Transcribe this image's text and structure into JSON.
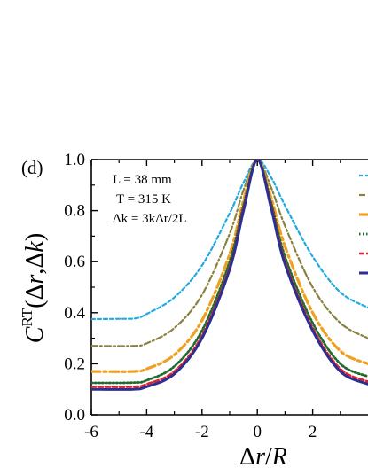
{
  "chart_data": {
    "type": "line",
    "panel_label": "(d)",
    "xlabel": "Δr/R",
    "ylabel": "C^RT(Δr,Δk)",
    "xlim": [
      -6,
      4
    ],
    "ylim": [
      0.0,
      1.0
    ],
    "xticks": [
      "-6",
      "-4",
      "-2",
      "0",
      "2"
    ],
    "yticks": [
      "0.0",
      "0.2",
      "0.4",
      "0.6",
      "0.8",
      "1.0"
    ],
    "annotations": [
      "L = 38 mm",
      "T = 315 K",
      "Δk = 3kΔr/2L"
    ],
    "series": [
      {
        "color": "#22a9e0",
        "dash": "4,3",
        "width": 2.2,
        "base": 0.375,
        "sigma": 1.45,
        "points": [
          [
            -6,
            0.375
          ],
          [
            -5,
            0.376
          ],
          [
            -4.4,
            0.378
          ],
          [
            -4,
            0.395
          ],
          [
            -3,
            0.46
          ],
          [
            -2,
            0.585
          ],
          [
            -1,
            0.79
          ],
          [
            -0.5,
            0.91
          ],
          [
            0,
            1.0
          ],
          [
            0.5,
            0.93
          ],
          [
            1,
            0.82
          ],
          [
            2,
            0.62
          ],
          [
            3,
            0.48
          ],
          [
            4,
            0.42
          ]
        ]
      },
      {
        "color": "#8a8140",
        "dash": "7,3,2,3",
        "width": 2.2,
        "base": 0.27,
        "sigma": 1.2,
        "points": [
          [
            -6,
            0.27
          ],
          [
            -4.5,
            0.27
          ],
          [
            -4,
            0.28
          ],
          [
            -3,
            0.34
          ],
          [
            -2,
            0.47
          ],
          [
            -1,
            0.71
          ],
          [
            -0.5,
            0.88
          ],
          [
            0,
            1.0
          ],
          [
            0.5,
            0.89
          ],
          [
            1,
            0.74
          ],
          [
            2,
            0.5
          ],
          [
            3,
            0.36
          ],
          [
            4,
            0.3
          ]
        ]
      },
      {
        "color": "#f0a020",
        "dash": "10,4,3,4",
        "width": 3.2,
        "base": 0.17,
        "sigma": 1.0,
        "points": [
          [
            -6,
            0.17
          ],
          [
            -4.5,
            0.17
          ],
          [
            -4,
            0.18
          ],
          [
            -3,
            0.235
          ],
          [
            -2,
            0.37
          ],
          [
            -1,
            0.63
          ],
          [
            -0.5,
            0.84
          ],
          [
            0,
            1.0
          ],
          [
            0.5,
            0.85
          ],
          [
            1,
            0.66
          ],
          [
            2,
            0.4
          ],
          [
            3,
            0.25
          ],
          [
            4,
            0.2
          ]
        ]
      },
      {
        "color": "#1f6b30",
        "dash": "1.5,2.5",
        "width": 2.8,
        "base": 0.125,
        "sigma": 0.93,
        "points": [
          [
            -6,
            0.125
          ],
          [
            -4.5,
            0.126
          ],
          [
            -4,
            0.135
          ],
          [
            -3,
            0.19
          ],
          [
            -2,
            0.33
          ],
          [
            -1,
            0.6
          ],
          [
            -0.5,
            0.82
          ],
          [
            0,
            1.0
          ],
          [
            0.5,
            0.83
          ],
          [
            1,
            0.62
          ],
          [
            2,
            0.36
          ],
          [
            3,
            0.2
          ],
          [
            4,
            0.15
          ]
        ]
      },
      {
        "color": "#e02030",
        "dash": "5,3",
        "width": 2.6,
        "base": 0.11,
        "sigma": 0.9,
        "points": [
          [
            -6,
            0.11
          ],
          [
            -4.5,
            0.11
          ],
          [
            -4,
            0.12
          ],
          [
            -3,
            0.17
          ],
          [
            -2,
            0.31
          ],
          [
            -1,
            0.58
          ],
          [
            -0.5,
            0.81
          ],
          [
            0,
            1.0
          ],
          [
            0.5,
            0.82
          ],
          [
            1,
            0.6
          ],
          [
            2,
            0.34
          ],
          [
            3,
            0.18
          ],
          [
            4,
            0.13
          ]
        ]
      },
      {
        "color": "#2b2f8f",
        "dash": "",
        "width": 3.0,
        "base": 0.1,
        "sigma": 0.88,
        "points": [
          [
            -6,
            0.1
          ],
          [
            -4.5,
            0.1
          ],
          [
            -4,
            0.11
          ],
          [
            -3,
            0.16
          ],
          [
            -2,
            0.3
          ],
          [
            -1,
            0.57
          ],
          [
            -0.5,
            0.8
          ],
          [
            0,
            1.0
          ],
          [
            0.5,
            0.81
          ],
          [
            1,
            0.59
          ],
          [
            2,
            0.33
          ],
          [
            3,
            0.17
          ],
          [
            4,
            0.12
          ]
        ]
      }
    ]
  }
}
